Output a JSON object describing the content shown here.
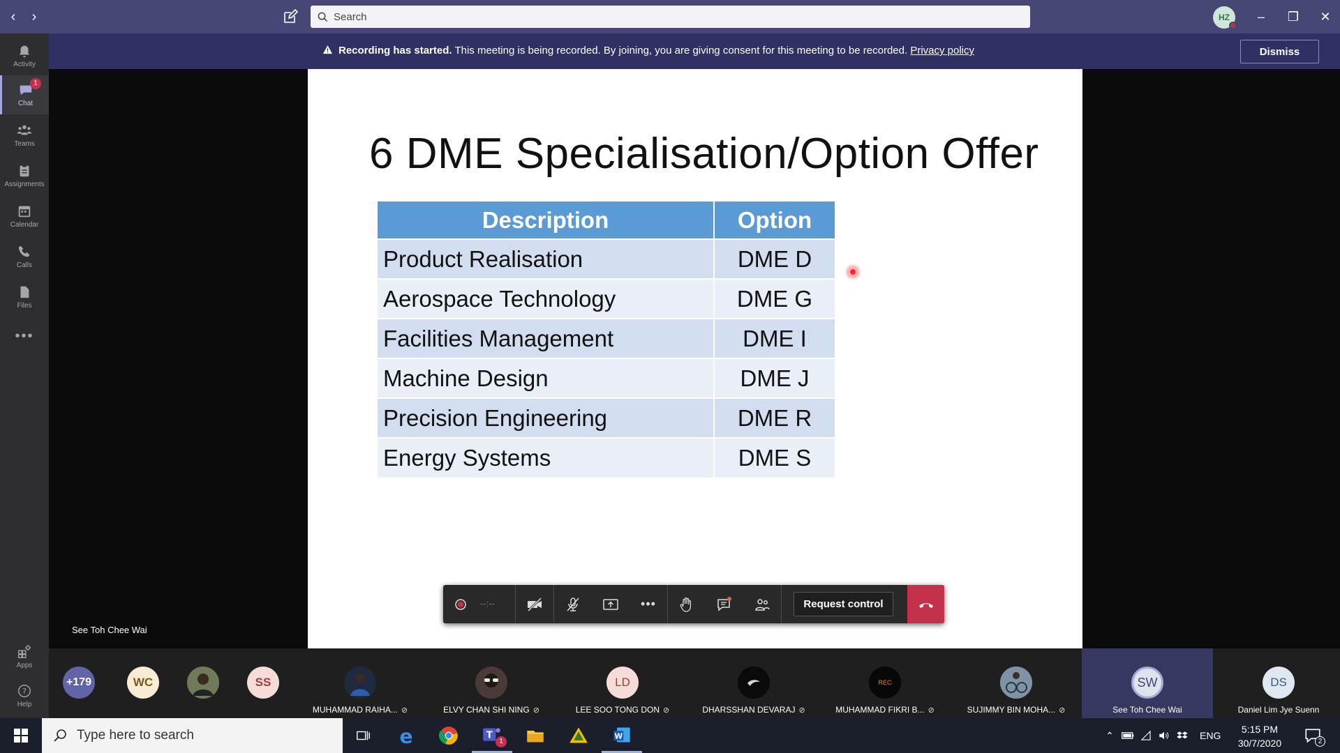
{
  "titlebar": {
    "search_placeholder": "Search",
    "avatar_initials": "HZ"
  },
  "rail": {
    "items": [
      {
        "label": "Activity"
      },
      {
        "label": "Chat",
        "badge": "1"
      },
      {
        "label": "Teams"
      },
      {
        "label": "Assignments"
      },
      {
        "label": "Calendar"
      },
      {
        "label": "Calls"
      },
      {
        "label": "Files"
      },
      {
        "label": "Apps"
      },
      {
        "label": "Help"
      }
    ]
  },
  "banner": {
    "title": "Recording has started.",
    "message": " This meeting is being recorded. By joining, you are giving consent for this meeting to be recorded. ",
    "link": "Privacy policy",
    "dismiss": "Dismiss"
  },
  "slide": {
    "title": "6 DME Specialisation/Option Offer",
    "table": {
      "headers": [
        "Description",
        "Option"
      ],
      "rows": [
        [
          "Product Realisation",
          "DME D"
        ],
        [
          "Aerospace Technology",
          "DME G"
        ],
        [
          "Facilities Management",
          "DME I"
        ],
        [
          "Machine Design",
          "DME J"
        ],
        [
          "Precision Engineering",
          "DME R"
        ],
        [
          "Energy Systems",
          "DME S"
        ]
      ]
    }
  },
  "presenter": "See Toh Chee Wai",
  "controls": {
    "timer": "--:--",
    "request_control": "Request control"
  },
  "participants": {
    "overflow": "+179",
    "small": [
      {
        "initials": "WC",
        "color": "#f8ecd5",
        "text_color": "#7a5a1a"
      },
      {
        "initials": "",
        "color": "#5b6a4a",
        "text_color": "#ffffff"
      },
      {
        "initials": "SS",
        "color": "#f6dcd8",
        "text_color": "#9b3e33"
      }
    ],
    "tiles": [
      {
        "name": "MUHAMMAD RAIHA...",
        "initials": "",
        "color": "#27324a",
        "text_color": "#fff"
      },
      {
        "name": "ELVY CHAN SHI NING",
        "initials": "",
        "color": "#3a3030",
        "text_color": "#fff"
      },
      {
        "name": "LEE SOO TONG DON",
        "initials": "LD",
        "color": "#f6dcd8",
        "text_color": "#9b3e33"
      },
      {
        "name": "DHARSSHAN DEVARAJ",
        "initials": "",
        "color": "#0c0c0c",
        "text_color": "#fff"
      },
      {
        "name": "MUHAMMAD FIKRI B...",
        "initials": "REC",
        "color": "#080808",
        "text_color": "#f08030"
      },
      {
        "name": "SUJIMMY BIN MOHA...",
        "initials": "",
        "color": "#5c6e84",
        "text_color": "#fff"
      },
      {
        "name": "See Toh Chee Wai",
        "initials": "SW",
        "color": "#dfe3ec",
        "text_color": "#464775"
      },
      {
        "name": "Daniel Lim Jye Suenn",
        "initials": "DS",
        "color": "#dfe8f0",
        "text_color": "#3d5a80"
      }
    ]
  },
  "taskbar": {
    "search_placeholder": "Type here to search",
    "teams_badge": "1",
    "lang": "ENG",
    "time": "5:15 PM",
    "date": "30/7/2020",
    "notif_count": "2"
  }
}
